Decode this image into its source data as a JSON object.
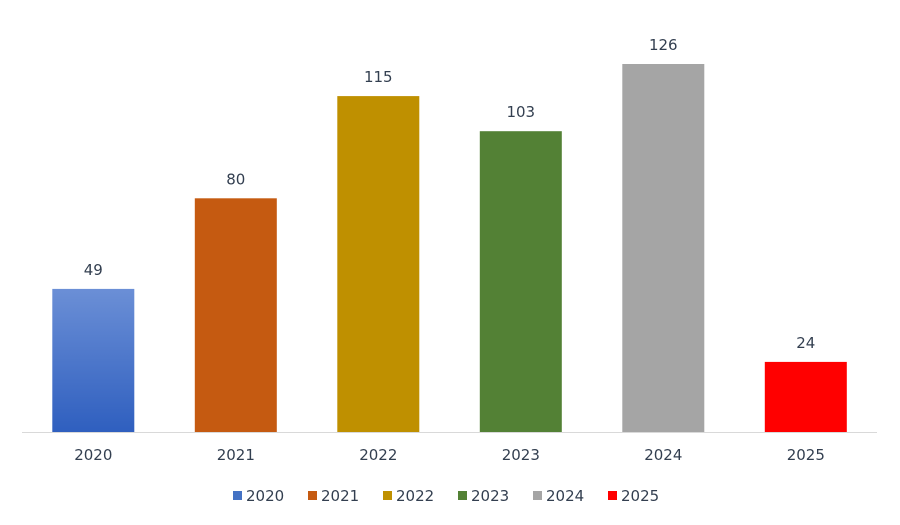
{
  "chart_data": {
    "type": "bar",
    "categories": [
      "2020",
      "2021",
      "2022",
      "2023",
      "2024",
      "2025"
    ],
    "values": [
      49,
      80,
      115,
      103,
      126,
      24
    ],
    "colors": [
      "#4472c4",
      "#c55a11",
      "#bf9000",
      "#538135",
      "#a5a5a5",
      "#ff0000"
    ],
    "gradient_first": [
      "#6b8fd6",
      "#2f5fbf"
    ],
    "ylim": [
      0,
      126
    ],
    "grid": false,
    "legend": {
      "placement": "bottom",
      "entries": [
        "2020",
        "2021",
        "2022",
        "2023",
        "2024",
        "2025"
      ]
    }
  }
}
